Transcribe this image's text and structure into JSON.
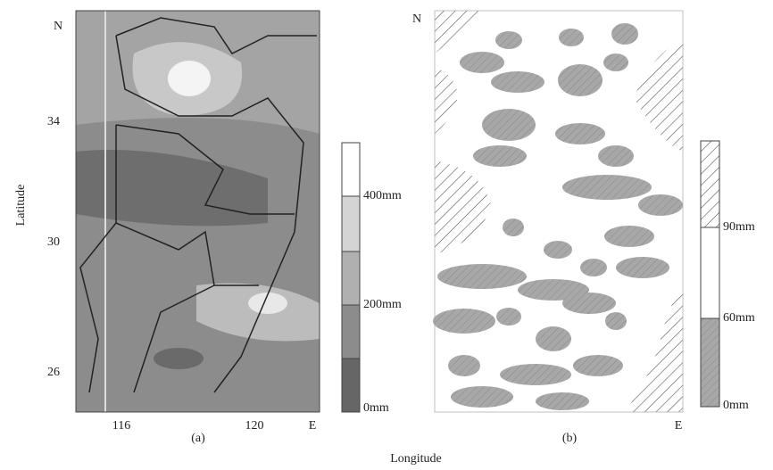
{
  "y_axis_label": "Latitude",
  "x_axis_label": "Longitude",
  "panels": [
    {
      "caption": "(a)",
      "north": "N",
      "east": "E",
      "y_ticks": [
        "34",
        "30",
        "26"
      ],
      "x_ticks": [
        "116",
        "120"
      ],
      "legend": [
        "400mm",
        "200mm",
        "0mm"
      ]
    },
    {
      "caption": "(b)",
      "north": "N",
      "east": "E",
      "legend": [
        "90mm",
        "60mm",
        "0mm"
      ]
    }
  ]
}
